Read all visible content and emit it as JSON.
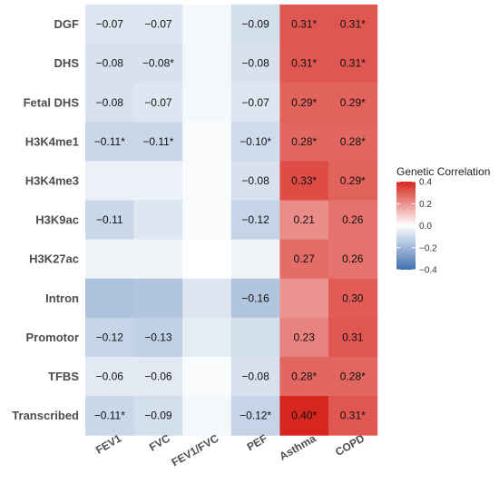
{
  "chart_data": {
    "type": "heatmap",
    "columns": [
      "FEV1",
      "FVC",
      "FEV1/FVC",
      "PEF",
      "Asthma",
      "COPD"
    ],
    "rows": [
      "DGF",
      "DHS",
      "Fetal DHS",
      "H3K4me1",
      "H3K4me3",
      "H3K9ac",
      "H3K27ac",
      "Intron",
      "Promotor",
      "TFBS",
      "Transcribed"
    ],
    "values": [
      [
        -0.07,
        -0.07,
        -0.02,
        -0.09,
        0.31,
        0.31
      ],
      [
        -0.08,
        -0.08,
        -0.02,
        -0.08,
        0.31,
        0.31
      ],
      [
        -0.08,
        -0.07,
        -0.02,
        -0.07,
        0.29,
        0.29
      ],
      [
        -0.11,
        -0.11,
        -0.01,
        -0.1,
        0.28,
        0.28
      ],
      [
        -0.04,
        -0.04,
        -0.01,
        -0.08,
        0.33,
        0.29
      ],
      [
        -0.11,
        -0.07,
        -0.01,
        -0.12,
        0.21,
        0.26
      ],
      [
        -0.03,
        -0.03,
        0.0,
        -0.03,
        0.27,
        0.26
      ],
      [
        -0.17,
        -0.16,
        -0.07,
        -0.16,
        0.2,
        0.3
      ],
      [
        -0.12,
        -0.13,
        -0.05,
        -0.09,
        0.23,
        0.31
      ],
      [
        -0.06,
        -0.06,
        -0.01,
        -0.08,
        0.28,
        0.28
      ],
      [
        -0.11,
        -0.09,
        -0.02,
        -0.12,
        0.4,
        0.31
      ]
    ],
    "labels": [
      [
        "−0.07",
        "−0.07",
        "",
        "−0.09",
        "0.31*",
        "0.31*"
      ],
      [
        "−0.08",
        "−0.08*",
        "",
        "−0.08",
        "0.31*",
        "0.31*"
      ],
      [
        "−0.08",
        "−0.07",
        "",
        "−0.07",
        "0.29*",
        "0.29*"
      ],
      [
        "−0.11*",
        "−0.11*",
        "",
        "−0.10*",
        "0.28*",
        "0.28*"
      ],
      [
        "",
        "",
        "",
        "−0.08",
        "0.33*",
        "0.29*"
      ],
      [
        "−0.11",
        "",
        "",
        "−0.12",
        "0.21",
        "0.26"
      ],
      [
        "",
        "",
        "",
        "",
        "0.27",
        "0.26"
      ],
      [
        "",
        "",
        "",
        "−0.16",
        "",
        "0.30"
      ],
      [
        "−0.12",
        "−0.13",
        "",
        "",
        "0.23",
        "0.31"
      ],
      [
        "−0.06",
        "−0.06",
        "",
        "−0.08",
        "0.28*",
        "0.28*"
      ],
      [
        "−0.11*",
        "−0.09",
        "",
        "−0.12*",
        "0.40*",
        "0.31*"
      ]
    ],
    "legend": {
      "title": "Genetic Correlation",
      "ticks": [
        0.4,
        0.2,
        0.0,
        -0.2,
        -0.4
      ],
      "tick_labels": [
        "0.4",
        "0.2",
        "0.0",
        "−0.2",
        "−0.4"
      ],
      "range": [
        -0.4,
        0.4
      ],
      "placement": "right"
    },
    "colors": {
      "low": "#3e6fb0",
      "mid": "#ffffff",
      "high": "#d7261e"
    }
  }
}
